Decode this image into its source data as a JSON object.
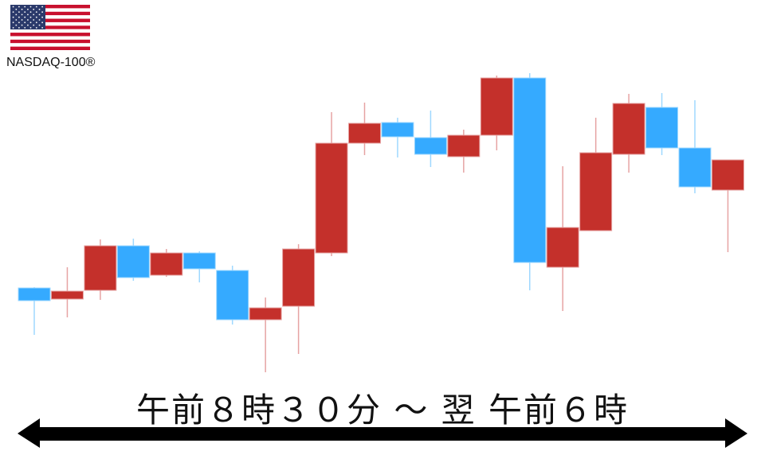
{
  "header": {
    "flag_icon": "us-flag-icon",
    "index_name": "NASDAQ-100®"
  },
  "footer": {
    "period_label": "午前８時３０分 ～ 翌 午前６時",
    "arrow_icon": "double-headed-arrow-icon"
  },
  "colors": {
    "up": "#c4302b",
    "down": "#35aaff",
    "up_wick": "#e6a3a3",
    "down_wick": "#9fd8ff"
  },
  "chart_data": {
    "type": "candlestick",
    "axes_visible": false,
    "grid": false,
    "ylim": [
      0,
      450
    ],
    "candles": [
      {
        "o": 138,
        "h": 139,
        "l": 79,
        "c": 122
      },
      {
        "o": 124,
        "h": 164,
        "l": 101,
        "c": 134
      },
      {
        "o": 135,
        "h": 199,
        "l": 123,
        "c": 191
      },
      {
        "o": 191,
        "h": 200,
        "l": 147,
        "c": 151
      },
      {
        "o": 154,
        "h": 187,
        "l": 152,
        "c": 182
      },
      {
        "o": 182,
        "h": 184,
        "l": 145,
        "c": 162
      },
      {
        "o": 160,
        "h": 166,
        "l": 92,
        "c": 98
      },
      {
        "o": 98,
        "h": 126,
        "l": 32,
        "c": 113
      },
      {
        "o": 115,
        "h": 193,
        "l": 55,
        "c": 187
      },
      {
        "o": 182,
        "h": 359,
        "l": 178,
        "c": 320
      },
      {
        "o": 320,
        "h": 371,
        "l": 305,
        "c": 345
      },
      {
        "o": 346,
        "h": 352,
        "l": 302,
        "c": 328
      },
      {
        "o": 327,
        "h": 361,
        "l": 290,
        "c": 306
      },
      {
        "o": 303,
        "h": 337,
        "l": 283,
        "c": 330
      },
      {
        "o": 330,
        "h": 405,
        "l": 311,
        "c": 402
      },
      {
        "o": 402,
        "h": 408,
        "l": 135,
        "c": 170
      },
      {
        "o": 164,
        "h": 291,
        "l": 109,
        "c": 214
      },
      {
        "o": 210,
        "h": 352,
        "l": 210,
        "c": 308
      },
      {
        "o": 306,
        "h": 382,
        "l": 283,
        "c": 370
      },
      {
        "o": 365,
        "h": 383,
        "l": 305,
        "c": 314
      },
      {
        "o": 314,
        "h": 374,
        "l": 257,
        "c": 265
      },
      {
        "o": 261,
        "h": 299,
        "l": 183,
        "c": 299
      }
    ]
  }
}
